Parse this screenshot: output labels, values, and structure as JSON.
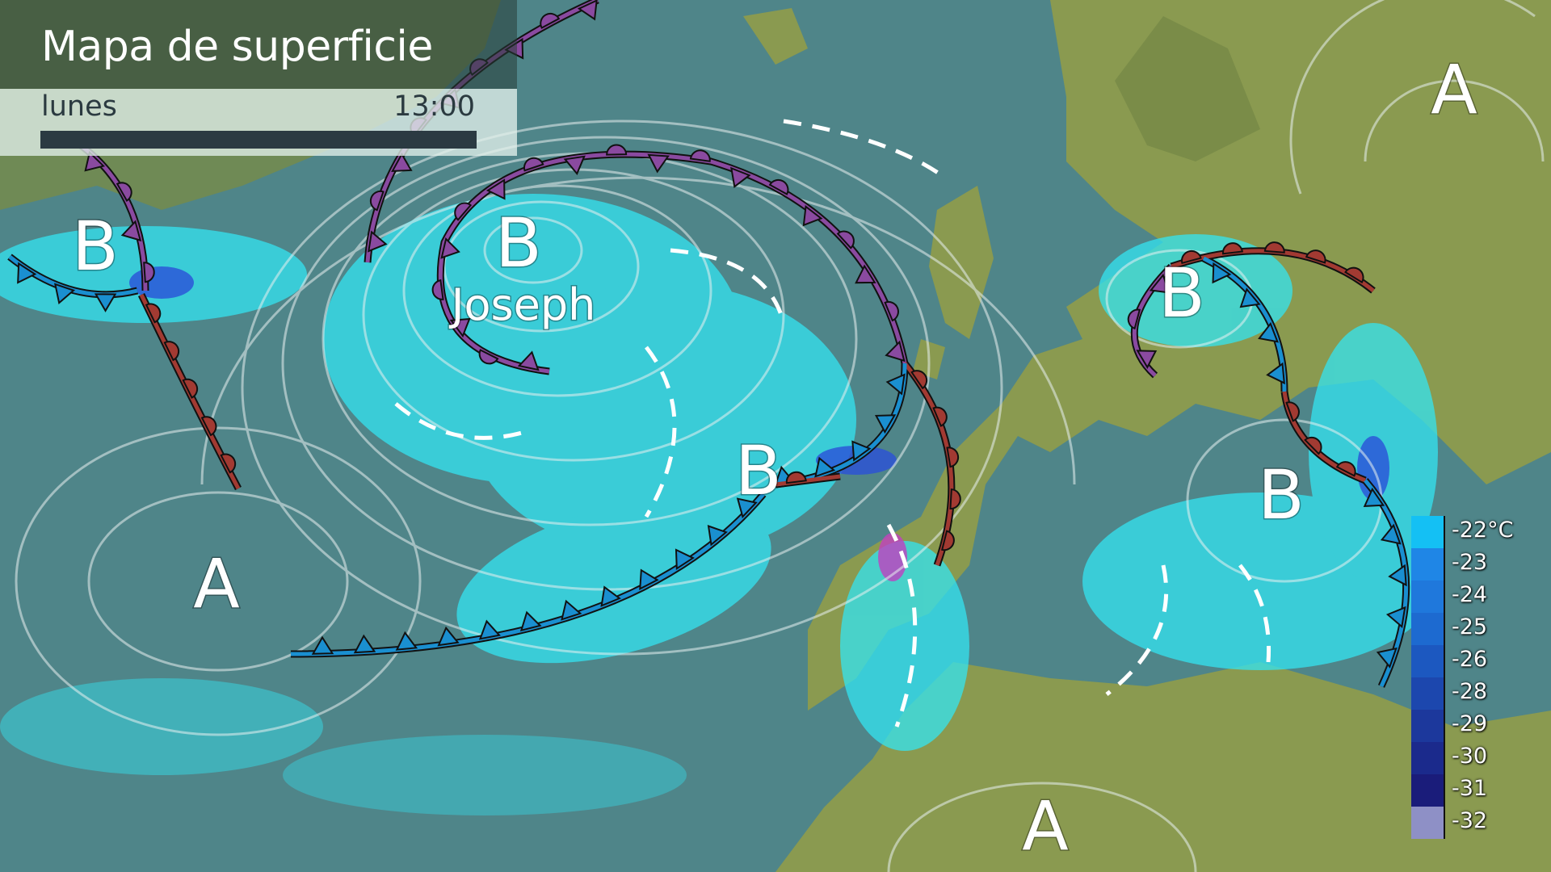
{
  "header": {
    "title": "Mapa de superficie",
    "day": "lunes",
    "time": "13:00"
  },
  "pressure_centers": [
    {
      "type": "high",
      "label": "A"
    },
    {
      "type": "low",
      "label": "B"
    },
    {
      "type": "low",
      "label": "B",
      "name": "Joseph"
    },
    {
      "type": "low",
      "label": "B"
    },
    {
      "type": "high",
      "label": "A"
    },
    {
      "type": "low",
      "label": "B"
    },
    {
      "type": "low",
      "label": "B"
    },
    {
      "type": "high",
      "label": "A"
    }
  ],
  "fronts": {
    "cold_color": "#1a8fd0",
    "warm_color": "#a23a32",
    "occluded_color": "#8a4aa0"
  },
  "legend": {
    "items": [
      {
        "label": "-22°C",
        "color": "#14c0f4"
      },
      {
        "label": "-23",
        "color": "#1f86e6"
      },
      {
        "label": "-24",
        "color": "#1f78dc"
      },
      {
        "label": "-25",
        "color": "#1d6ad0"
      },
      {
        "label": "-26",
        "color": "#1c58c0"
      },
      {
        "label": "-28",
        "color": "#1c47ae"
      },
      {
        "label": "-29",
        "color": "#1c389c"
      },
      {
        "label": "-30",
        "color": "#1b2a8c"
      },
      {
        "label": "-31",
        "color": "#1a1c7a"
      },
      {
        "label": "-32",
        "color": "#8e90c6"
      }
    ]
  },
  "colors": {
    "ocean": "#4f8589",
    "land": "#8a9a50",
    "precip": "#33e4f2"
  }
}
